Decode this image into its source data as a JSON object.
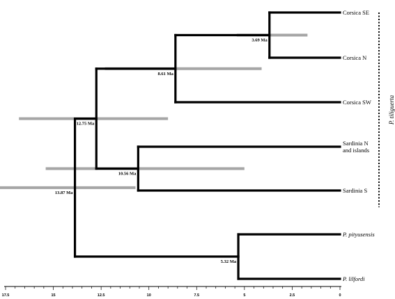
{
  "units": "Ma",
  "tips": [
    {
      "id": "corsica_se",
      "lines": [
        "Corsica SE"
      ],
      "italic": false
    },
    {
      "id": "corsica_n",
      "lines": [
        "Corsica N"
      ],
      "italic": false
    },
    {
      "id": "corsica_sw",
      "lines": [
        "Corsica SW"
      ],
      "italic": false
    },
    {
      "id": "sardinia_n",
      "lines": [
        "Sardinia N",
        "and islands"
      ],
      "italic": false
    },
    {
      "id": "sardinia_s",
      "lines": [
        "Sardinia S"
      ],
      "italic": false
    },
    {
      "id": "pityusensis",
      "lines": [
        "P. pityusensis"
      ],
      "italic": true
    },
    {
      "id": "lilfordi",
      "lines": [
        "P. lilfordi"
      ],
      "italic": true
    }
  ],
  "nodes": [
    {
      "id": "root",
      "label": "13.87 Ma",
      "age": 13.87,
      "hpd": [
        18.3,
        10.7
      ],
      "children": [
        "tiliguerta",
        "balearic"
      ]
    },
    {
      "id": "tiliguerta",
      "label": "12.75 Ma",
      "age": 12.75,
      "hpd": [
        16.8,
        9.0
      ],
      "children": [
        "corsica",
        "sardinia"
      ]
    },
    {
      "id": "corsica",
      "label": "8.61 Ma",
      "age": 8.61,
      "hpd": [
        12.3,
        4.1
      ],
      "children": [
        "corsica_ne",
        "corsica_sw"
      ]
    },
    {
      "id": "corsica_ne",
      "label": "3.69 Ma",
      "age": 3.69,
      "hpd": [
        5.4,
        1.7
      ],
      "children": [
        "corsica_se",
        "corsica_n"
      ]
    },
    {
      "id": "sardinia",
      "label": "10.56 Ma",
      "age": 10.56,
      "hpd": [
        15.4,
        5.0
      ],
      "children": [
        "sardinia_n",
        "sardinia_s"
      ]
    },
    {
      "id": "balearic",
      "label": "5.32 Ma",
      "age": 5.32,
      "hpd": null,
      "children": [
        "pityusensis",
        "lilfordi"
      ]
    }
  ],
  "clade": {
    "label": "P. tiliguerta",
    "tips": [
      "corsica_se",
      "sardinia_s"
    ]
  },
  "axis": {
    "ticks": [
      "17.5",
      "15",
      "12.5",
      "10",
      "7.5",
      "5",
      "2.5",
      "0"
    ],
    "max": 17.5
  }
}
